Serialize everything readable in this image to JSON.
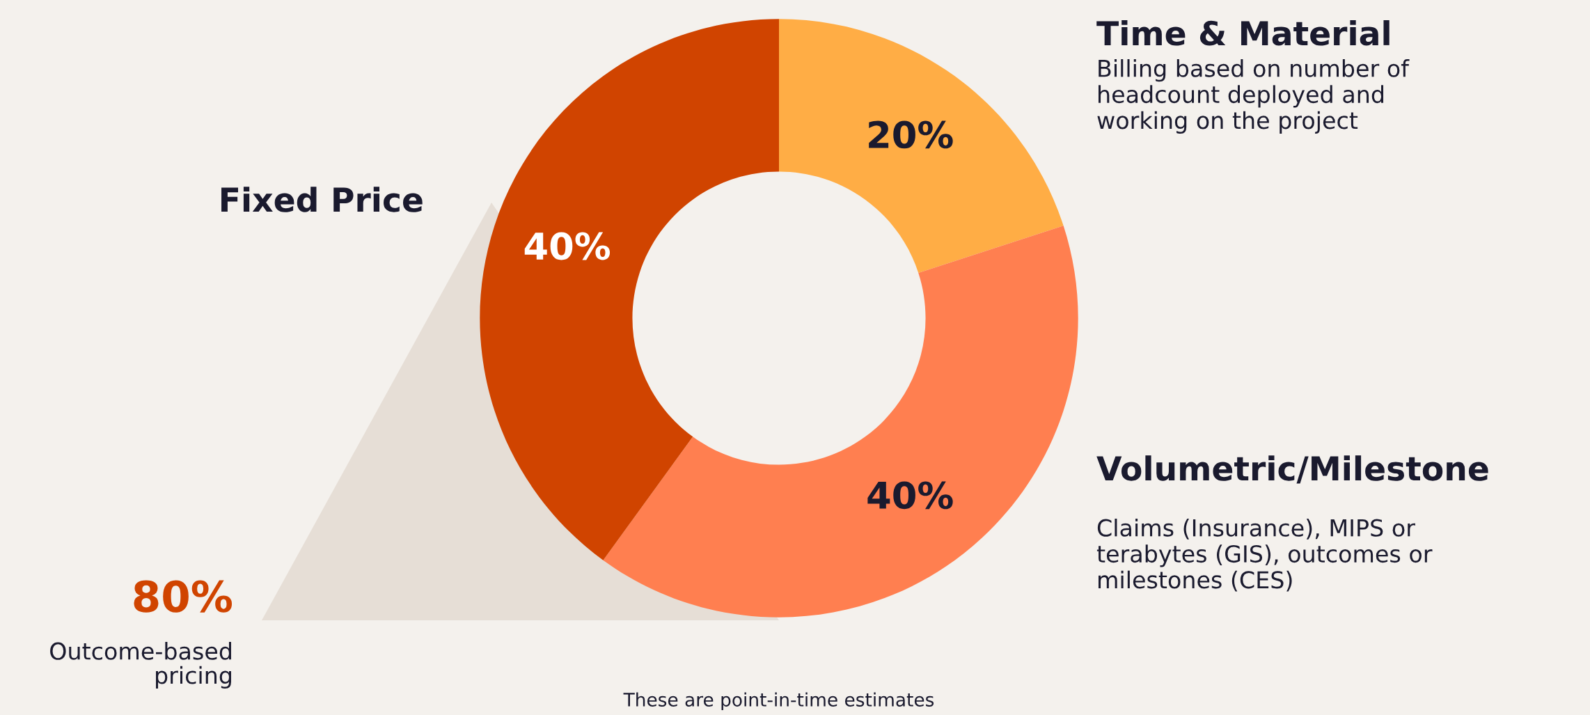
{
  "chart_data": {
    "type": "donut",
    "categories": [
      "Time & Material",
      "Volumetric/Milestone",
      "Fixed Price"
    ],
    "values": [
      20,
      40,
      40
    ],
    "colors": [
      "#ffad45",
      "#ff7f50",
      "#d04400"
    ],
    "value_labels": [
      "20%",
      "40%",
      "40%"
    ],
    "annotations": [
      "Billing based on number of\nheadcount deployed and\nworking on the project",
      "Claims (Insurance), MIPS or\nterabytes (GIS), outcomes or\nmilestones (CES)",
      "80%",
      "Outcome-based\npricing",
      "These are point-in-time estimates"
    ]
  }
}
